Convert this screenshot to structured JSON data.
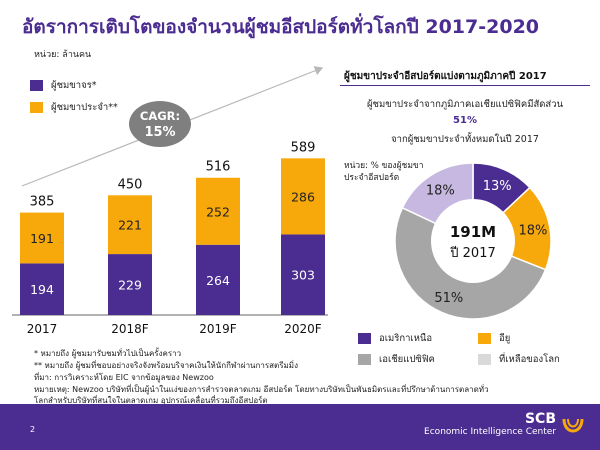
{
  "title": "อัตราการเติบโตของจำนวนผู้ชมอีสปอร์ตทั่วโลกปี 2017-2020",
  "unit": "หน่วย: ล้านคน",
  "colors": {
    "purple": "#4b2c91",
    "orange": "#f7a80b",
    "gray": "#a6a6a6",
    "lightgray": "#d9d9d9",
    "lavender": "#c6b8e0"
  },
  "chart_data": [
    {
      "type": "bar",
      "stacked": true,
      "categories": [
        "2017",
        "2018F",
        "2019F",
        "2020F"
      ],
      "series": [
        {
          "name": "ผู้ชมขาจร*",
          "values": [
            194,
            229,
            264,
            303
          ]
        },
        {
          "name": "ผู้ชมขาประจำ**",
          "values": [
            191,
            221,
            252,
            286
          ]
        }
      ],
      "totals": [
        385,
        450,
        516,
        589
      ],
      "cagr_label": "CAGR:",
      "cagr_value": "15%",
      "ylim": [
        0,
        600
      ]
    },
    {
      "type": "pie",
      "title": "ผู้ชมขาประจำอีสปอร์ตแบ่งตามภูมิภาคปี 2017",
      "center_value": "191M",
      "center_label": "ปี 2017",
      "unit": [
        "หน่วย: % ของผู้ชมขา",
        "ประจำอีสปอร์ต"
      ],
      "slices": [
        {
          "name": "อเมริกาเหนือ",
          "value": 13,
          "label": "13%"
        },
        {
          "name": "อียู",
          "value": 18,
          "label": "18%"
        },
        {
          "name": "เอเชียแปซิฟิค",
          "value": 51,
          "label": "51%"
        },
        {
          "name": "ที่เหลือของโลก",
          "value": 18,
          "label": "18%"
        }
      ]
    }
  ],
  "share_text_1": "ผู้ชมขาประจำจากภูมิภาคเอเชียแปซิฟิคมีสัดส่วน",
  "share_pct": "51%",
  "share_text_2": "จากผู้ชมขาประจำทั้งหมดในปี 2017",
  "footnotes": [
    "*   หมายถึง ผู้ชมมารับชมทั่วไปเป็นครั้งคราว",
    "**  หมายถึง ผู้ชมที่ชอบอย่างจริงจังพร้อมบริจาคเงินให้นักกีฬาผ่านการสตรีมมิ่ง",
    "ที่มา: การวิเคราะห์โดย EIC จากข้อมูลของ Newzoo",
    "หมายเหตุ: Newzoo บริษัทที่เป็นผู้นำในแง่ของการสำรวจตลาดเกม อีสปอร์ต โดยทางบริษัทเป็นพันธมิตรและที่ปรึกษาด้านการตลาดทั่ว",
    "โลกสำหรับบริษัทที่สนใจในตลาดเกม อุปกรณ์เคลื่อนที่รวมถึงอีสปอร์ต"
  ],
  "page_number": "2",
  "brand_name": "SCB",
  "brand_sub": "Economic Intelligence Center"
}
